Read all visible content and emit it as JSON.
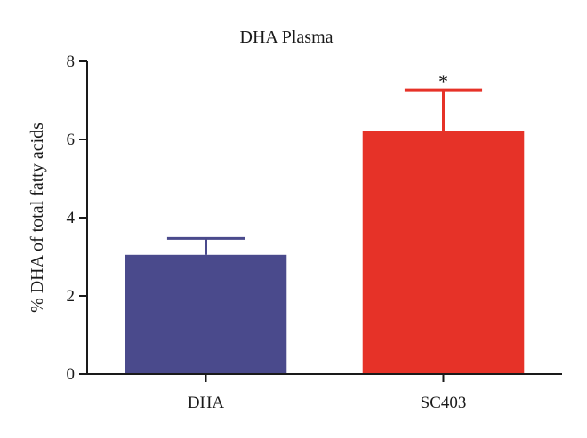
{
  "chart_data": {
    "type": "bar",
    "title": "DHA Plasma",
    "xlabel": "",
    "ylabel": "% DHA of total fatty acids",
    "ylim": [
      0,
      8
    ],
    "yticks": [
      0,
      2,
      4,
      6,
      8
    ],
    "categories": [
      "DHA",
      "SC403"
    ],
    "values": [
      3.05,
      6.22
    ],
    "error_upper": [
      3.47,
      7.27
    ],
    "annotations": [
      "",
      "*"
    ],
    "colors": [
      "#4a4a8c",
      "#e63228"
    ],
    "grid": false,
    "legend": "none"
  }
}
